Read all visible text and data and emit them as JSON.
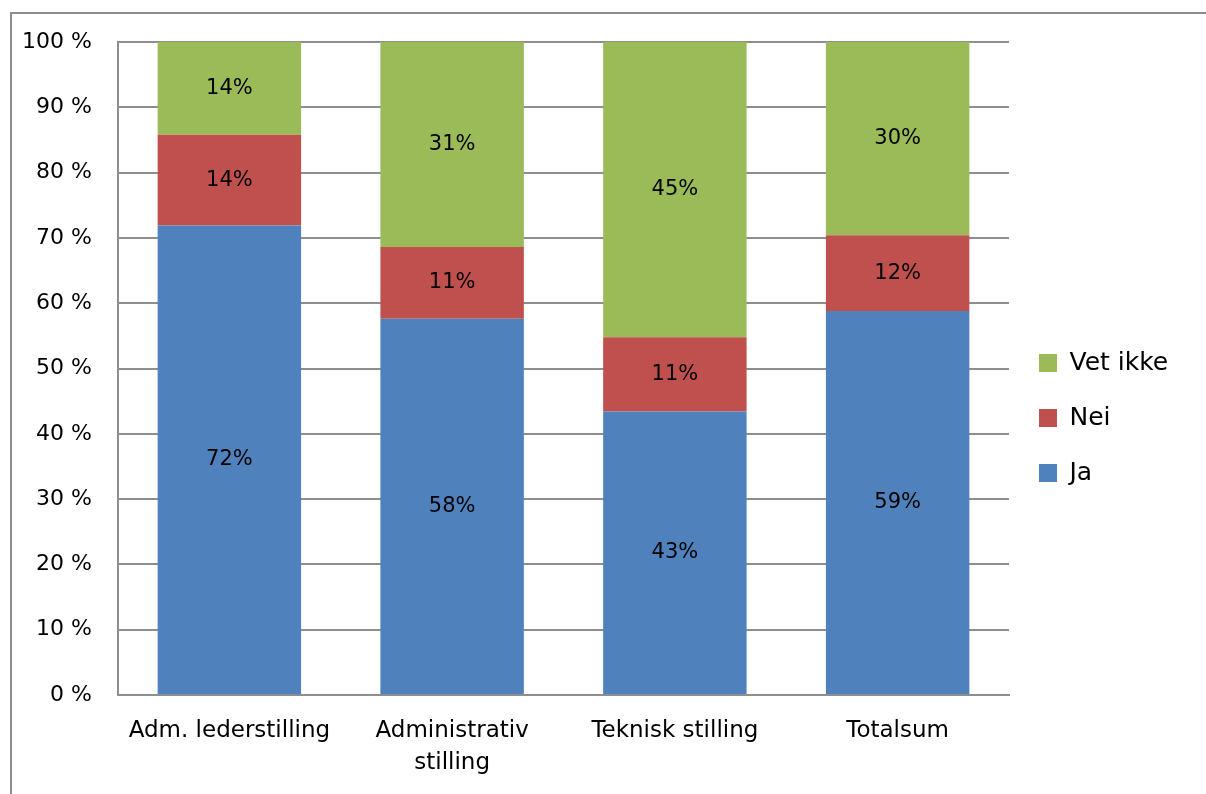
{
  "chart_data": {
    "type": "bar",
    "stacked": true,
    "categories": [
      "Adm. lederstilling",
      "Administrativ stilling",
      "Teknisk stilling",
      "Totalsum"
    ],
    "series": [
      {
        "name": "Ja",
        "color": "#4f81bd",
        "values": [
          71.9,
          57.6,
          43.4,
          58.8
        ],
        "value_labels": [
          "72%",
          "58%",
          "43%",
          "59%"
        ]
      },
      {
        "name": "Nei",
        "color": "#c0504d",
        "values": [
          13.9,
          11.0,
          11.4,
          11.6
        ],
        "value_labels": [
          "14%",
          "11%",
          "11%",
          "12%"
        ]
      },
      {
        "name": "Vet ikke",
        "color": "#9bbb59",
        "values": [
          14.2,
          31.4,
          45.2,
          29.6
        ],
        "value_labels": [
          "14%",
          "31%",
          "45%",
          "30%"
        ]
      }
    ],
    "ylim": [
      0,
      100
    ],
    "yticks": [
      {
        "value": 0,
        "label": "0 %"
      },
      {
        "value": 10,
        "label": "10 %"
      },
      {
        "value": 20,
        "label": "20 %"
      },
      {
        "value": 30,
        "label": "30 %"
      },
      {
        "value": 40,
        "label": "40 %"
      },
      {
        "value": 50,
        "label": "50 %"
      },
      {
        "value": 60,
        "label": "60 %"
      },
      {
        "value": 70,
        "label": "70 %"
      },
      {
        "value": 80,
        "label": "80 %"
      },
      {
        "value": 90,
        "label": "90 %"
      },
      {
        "value": 100,
        "label": "100 %"
      }
    ],
    "grid": "y",
    "legend": "right"
  }
}
